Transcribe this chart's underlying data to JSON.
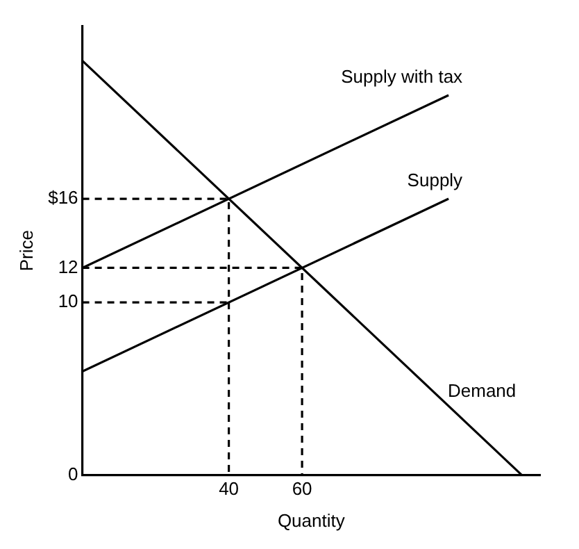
{
  "chart_data": {
    "type": "line",
    "xlabel": "Quantity",
    "ylabel": "Price",
    "xlim": [
      0,
      125
    ],
    "ylim": [
      0,
      26
    ],
    "xticks": [
      40,
      60
    ],
    "yticks": [
      0,
      10,
      12,
      {
        "value": 16,
        "label": "$16"
      }
    ],
    "grid": false,
    "legend": false,
    "marker": "none",
    "series": [
      {
        "name": "Supply with tax",
        "color": "#000000",
        "x": [
          0,
          100
        ],
        "values": [
          12,
          22
        ]
      },
      {
        "name": "Supply",
        "color": "#000000",
        "x": [
          0,
          100
        ],
        "values": [
          6,
          16
        ]
      },
      {
        "name": "Demand",
        "color": "#000000",
        "x": [
          0,
          120
        ],
        "values": [
          24,
          0
        ]
      },
      {
        "color": "#000000",
        "line_style": "dashed",
        "x": [
          0,
          40,
          40
        ],
        "values": [
          16,
          16,
          0
        ]
      },
      {
        "color": "#000000",
        "line_style": "dashed",
        "x": [
          0,
          60,
          60
        ],
        "values": [
          12,
          12,
          0
        ]
      },
      {
        "color": "#000000",
        "line_style": "dashed",
        "x": [
          0,
          40
        ],
        "values": [
          10,
          10
        ]
      }
    ]
  }
}
